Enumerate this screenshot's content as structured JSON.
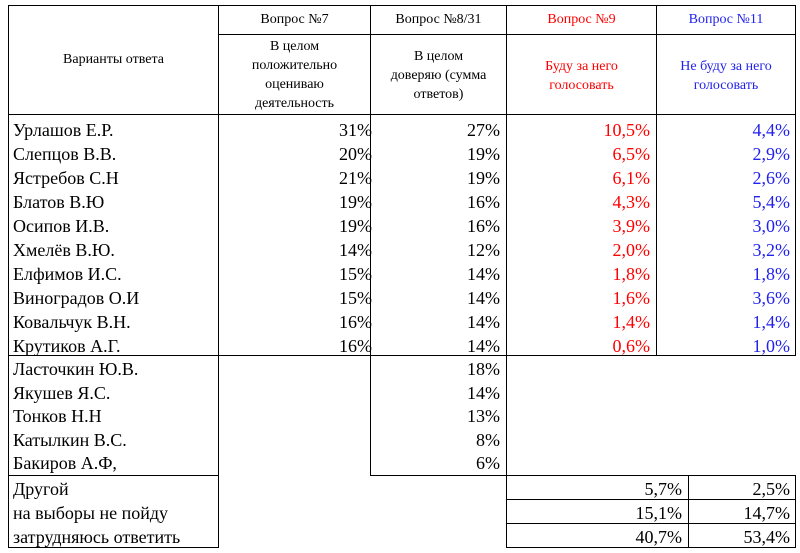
{
  "header": {
    "answer_variants": "Варианты ответа",
    "q7_title": "Вопрос №7",
    "q7_sub": [
      "В целом",
      "положительно",
      "оцениваю",
      "деятельность"
    ],
    "q8_title": "Вопрос №8/31",
    "q8_sub": [
      "В целом",
      "доверяю (сумма",
      "ответов)"
    ],
    "q9_title": "Вопрос №9",
    "q9_sub": [
      "Буду за него",
      "голосовать"
    ],
    "q11_title": "Вопрос №11",
    "q11_sub": [
      "Не буду за него",
      "голосовать"
    ]
  },
  "rows_full": [
    {
      "name": "Урлашов Е.Р.",
      "q7": "31%",
      "q8": "27%",
      "q9": "10,5%",
      "q11": "4,4%"
    },
    {
      "name": "Слепцов В.В.",
      "q7": "20%",
      "q8": "19%",
      "q9": "6,5%",
      "q11": "2,9%"
    },
    {
      "name": "Ястребов С.Н",
      "q7": "21%",
      "q8": "19%",
      "q9": "6,1%",
      "q11": "2,6%"
    },
    {
      "name": "Блатов В.Ю",
      "q7": "19%",
      "q8": "16%",
      "q9": "4,3%",
      "q11": "5,4%"
    },
    {
      "name": "Осипов И.В.",
      "q7": "19%",
      "q8": "16%",
      "q9": "3,9%",
      "q11": "3,0%"
    },
    {
      "name": "Хмелёв В.Ю.",
      "q7": "14%",
      "q8": "12%",
      "q9": "2,0%",
      "q11": "3,2%"
    },
    {
      "name": "Елфимов И.С.",
      "q7": "15%",
      "q8": "14%",
      "q9": "1,8%",
      "q11": "1,8%"
    },
    {
      "name": "Виноградов О.И",
      "q7": "15%",
      "q8": "14%",
      "q9": "1,6%",
      "q11": "3,6%"
    },
    {
      "name": "Ковальчук В.Н.",
      "q7": "16%",
      "q8": "14%",
      "q9": "1,4%",
      "q11": "1,4%"
    },
    {
      "name": "Крутиков А.Г.",
      "q7": "16%",
      "q8": "14%",
      "q9": "0,6%",
      "q11": "1,0%"
    }
  ],
  "rows_q8": [
    {
      "name": "Ласточкин Ю.В.",
      "q8": "18%"
    },
    {
      "name": "Якушев Я.С.",
      "q8": "14%"
    },
    {
      "name": "Тонков Н.Н",
      "q8": "13%"
    },
    {
      "name": "Катылкин В.С.",
      "q8": "8%"
    },
    {
      "name": "Бакиров А.Ф,",
      "q8": "6%"
    }
  ],
  "rows_other": [
    {
      "name": "Другой",
      "q9": "5,7%",
      "q11": "2,5%"
    },
    {
      "name": "на выборы не пойду",
      "q9": "15,1%",
      "q11": "14,7%"
    },
    {
      "name": "затрудняюсь ответить",
      "q9": "40,7%",
      "q11": "53,4%"
    }
  ],
  "colors": {
    "q9": "#ff0000",
    "q11": "#2222ee"
  }
}
